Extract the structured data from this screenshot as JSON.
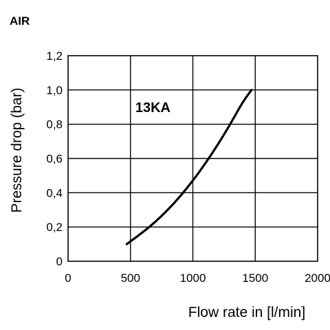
{
  "page": {
    "title": "AIR"
  },
  "chart_data": {
    "type": "line",
    "title": "",
    "xlabel": "Flow rate in [l/min]",
    "ylabel": "Pressure drop (bar)",
    "xlim": [
      0,
      2000
    ],
    "ylim": [
      0,
      1.2
    ],
    "x_ticks": [
      0,
      500,
      1000,
      1500,
      2000
    ],
    "x_tick_labels": [
      "0",
      "500",
      "1000",
      "1500",
      "2000"
    ],
    "y_ticks": [
      0,
      0.2,
      0.4,
      0.6,
      0.8,
      1.0,
      1.2
    ],
    "y_tick_labels": [
      "0",
      "0,2",
      "0,4",
      "0,6",
      "0,8",
      "1,0",
      "1,2"
    ],
    "grid": true,
    "series": [
      {
        "name": "13KA",
        "color": "#000000",
        "x": [
          470,
          600,
          700,
          800,
          900,
          1000,
          1100,
          1200,
          1300,
          1400,
          1470
        ],
        "y": [
          0.1,
          0.17,
          0.23,
          0.3,
          0.38,
          0.47,
          0.57,
          0.68,
          0.8,
          0.93,
          1.0
        ]
      }
    ],
    "annotations": [
      {
        "text": "13KA",
        "x": 680,
        "y": 0.87
      }
    ]
  }
}
